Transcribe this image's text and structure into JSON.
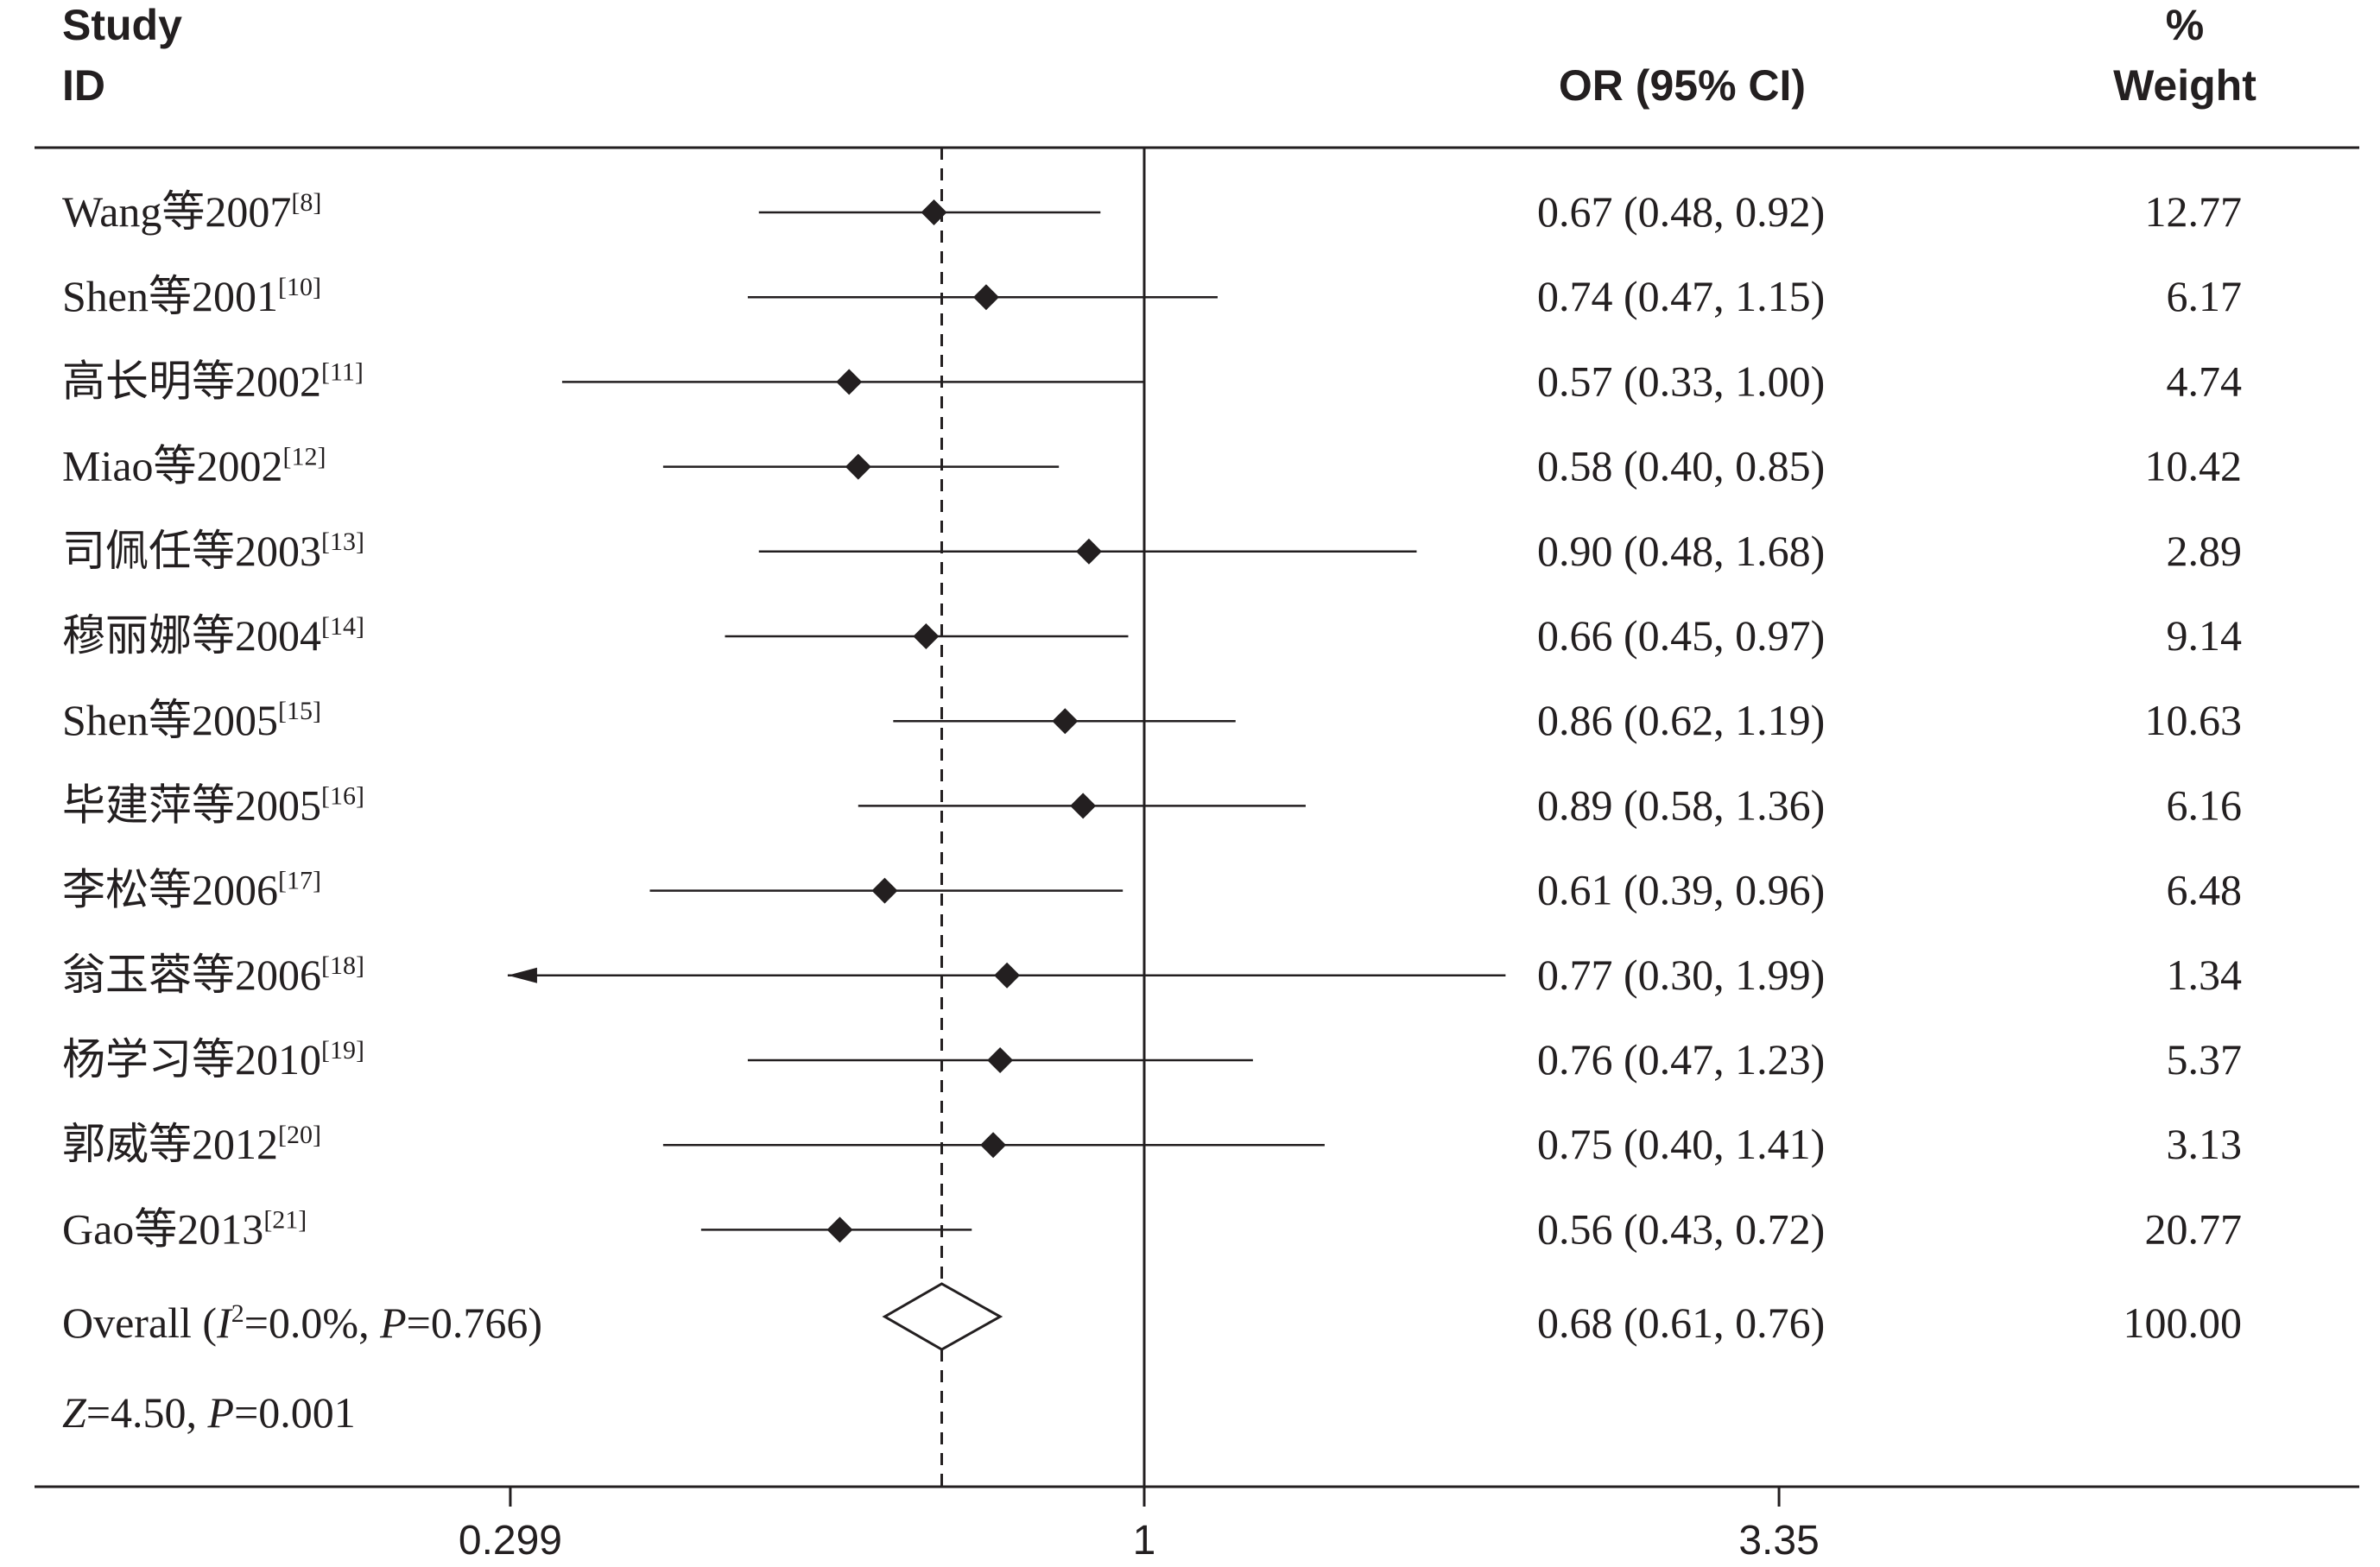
{
  "chart_data": {
    "type": "forest",
    "headers": {
      "study_line1": "Study",
      "study_line2": "ID",
      "or": "OR (95% CI)",
      "weight_line1": "%",
      "weight_line2": "Weight"
    },
    "studies": [
      {
        "name": "Wang等2007",
        "ref": "[8]",
        "or": 0.67,
        "lo": 0.48,
        "hi": 0.92,
        "or_text": "0.67 (0.48, 0.92)",
        "weight": "12.77"
      },
      {
        "name": "Shen等2001",
        "ref": "[10]",
        "or": 0.74,
        "lo": 0.47,
        "hi": 1.15,
        "or_text": "0.74 (0.47, 1.15)",
        "weight": "6.17"
      },
      {
        "name": "高长明等2002",
        "ref": "[11]",
        "or": 0.57,
        "lo": 0.33,
        "hi": 1.0,
        "or_text": "0.57 (0.33, 1.00)",
        "weight": "4.74"
      },
      {
        "name": "Miao等2002",
        "ref": "[12]",
        "or": 0.58,
        "lo": 0.4,
        "hi": 0.85,
        "or_text": "0.58 (0.40, 0.85)",
        "weight": "10.42"
      },
      {
        "name": "司佩任等2003",
        "ref": "[13]",
        "or": 0.9,
        "lo": 0.48,
        "hi": 1.68,
        "or_text": "0.90 (0.48, 1.68)",
        "weight": "2.89"
      },
      {
        "name": "穆丽娜等2004",
        "ref": "[14]",
        "or": 0.66,
        "lo": 0.45,
        "hi": 0.97,
        "or_text": "0.66 (0.45, 0.97)",
        "weight": "9.14"
      },
      {
        "name": "Shen等2005",
        "ref": "[15]",
        "or": 0.86,
        "lo": 0.62,
        "hi": 1.19,
        "or_text": "0.86 (0.62, 1.19)",
        "weight": "10.63"
      },
      {
        "name": "毕建萍等2005",
        "ref": "[16]",
        "or": 0.89,
        "lo": 0.58,
        "hi": 1.36,
        "or_text": "0.89 (0.58, 1.36)",
        "weight": "6.16"
      },
      {
        "name": "李松等2006",
        "ref": "[17]",
        "or": 0.61,
        "lo": 0.39,
        "hi": 0.96,
        "or_text": "0.61 (0.39, 0.96)",
        "weight": "6.48"
      },
      {
        "name": "翁玉蓉等2006",
        "ref": "[18]",
        "or": 0.77,
        "lo": 0.3,
        "hi": 1.99,
        "or_text": "0.77 (0.30, 1.99)",
        "weight": "1.34",
        "lo_clipped": true
      },
      {
        "name": "杨学习等2010",
        "ref": "[19]",
        "or": 0.76,
        "lo": 0.47,
        "hi": 1.23,
        "or_text": "0.76 (0.47, 1.23)",
        "weight": "5.37"
      },
      {
        "name": "郭威等2012",
        "ref": "[20]",
        "or": 0.75,
        "lo": 0.4,
        "hi": 1.41,
        "or_text": "0.75 (0.40, 1.41)",
        "weight": "3.13"
      },
      {
        "name": "Gao等2013",
        "ref": "[21]",
        "or": 0.56,
        "lo": 0.43,
        "hi": 0.72,
        "or_text": "0.56 (0.43, 0.72)",
        "weight": "20.77"
      }
    ],
    "overall": {
      "label_prefix": "Overall  (",
      "i_symbol": "I",
      "i_exp": "2",
      "het_text": "=0.0%, ",
      "p_symbol": "P",
      "p_text": "=0.766)",
      "or": 0.68,
      "lo": 0.61,
      "hi": 0.76,
      "or_text": "0.68 (0.61, 0.76)",
      "weight": "100.00"
    },
    "ztest": {
      "z_symbol": "Z",
      "z_text": "=4.50, ",
      "p_symbol": "P",
      "p_text": "=0.001"
    },
    "x_axis": {
      "scale": "log",
      "range": [
        0.299,
        3.35
      ],
      "ticks": [
        {
          "value": 0.299,
          "label": "0.299"
        },
        {
          "value": 1,
          "label": "1"
        },
        {
          "value": 3.35,
          "label": "3.35"
        }
      ]
    },
    "null_line": 1,
    "overall_line": 0.68
  }
}
